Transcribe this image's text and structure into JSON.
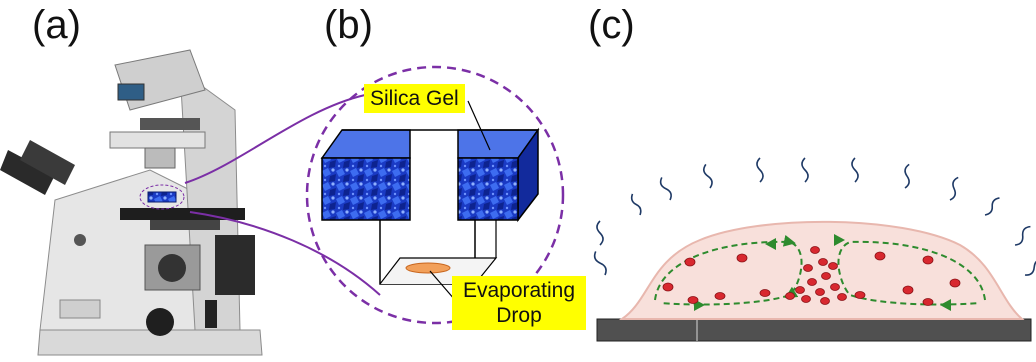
{
  "panels": {
    "a": "(a)",
    "b": "(b)",
    "c": "(c)"
  },
  "callouts": {
    "silica_gel": "Silica Gel",
    "evaporating_line1": "Evaporating",
    "evaporating_line2": "Drop"
  },
  "colors": {
    "accent_purple": "#7b2fa6",
    "callout_yellow": "#ffff00",
    "gel_blue": "#1f3fc8",
    "drop_pink": "#f6d9d3",
    "cell_red": "#d8282f",
    "flow_green": "#2e8b2e",
    "substrate": "#505050"
  },
  "icons": [
    "microscope-icon",
    "silica-gel-block-icon",
    "vapor-squiggle-icon",
    "red-blood-cell-icon"
  ]
}
